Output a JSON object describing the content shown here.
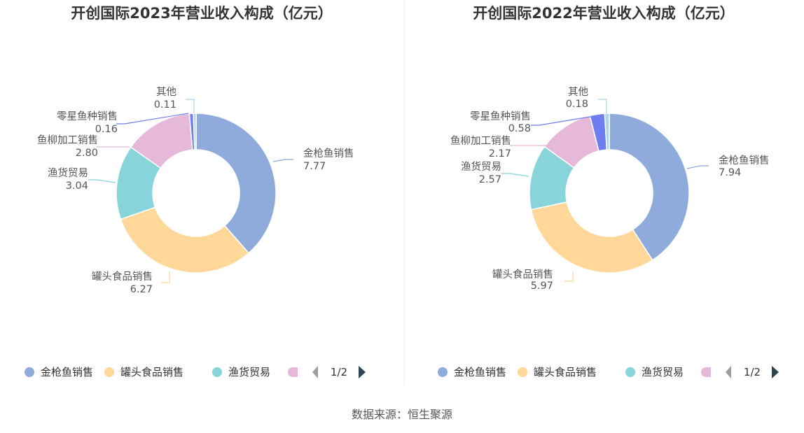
{
  "source_label": "数据来源：恒生聚源",
  "chart_data": [
    {
      "type": "pie",
      "title": "开创国际2023年营业收入构成（亿元）",
      "categories": [
        "金枪鱼销售",
        "罐头食品销售",
        "渔货贸易",
        "鱼柳加工销售",
        "零星鱼种销售",
        "其他"
      ],
      "values": [
        7.77,
        6.27,
        3.04,
        2.8,
        0.16,
        0.11
      ],
      "value_labels": [
        "7.77",
        "6.27",
        "3.04",
        "2.80",
        "0.16",
        "0.11"
      ],
      "colors": [
        "#8fabdc",
        "#ffd899",
        "#87d4da",
        "#e6b8d9",
        "#6e7ef0",
        "#a9d4ee"
      ],
      "legend": {
        "position": "bottom",
        "visible_items": [
          "金枪鱼销售",
          "罐头食品销售",
          "渔货贸易"
        ],
        "page": "1/2"
      }
    },
    {
      "type": "pie",
      "title": "开创国际2022年营业收入构成（亿元）",
      "categories": [
        "金枪鱼销售",
        "罐头食品销售",
        "渔货贸易",
        "鱼柳加工销售",
        "零星鱼种销售",
        "其他"
      ],
      "values": [
        7.94,
        5.97,
        2.57,
        2.17,
        0.58,
        0.18
      ],
      "value_labels": [
        "7.94",
        "5.97",
        "2.57",
        "2.17",
        "0.58",
        "0.18"
      ],
      "colors": [
        "#8fabdc",
        "#ffd899",
        "#87d4da",
        "#e6b8d9",
        "#6e7ef0",
        "#a9d4ee"
      ],
      "legend": {
        "position": "bottom",
        "visible_items": [
          "金枪鱼销售",
          "罐头食品销售",
          "渔货贸易"
        ],
        "page": "1/2"
      }
    }
  ]
}
